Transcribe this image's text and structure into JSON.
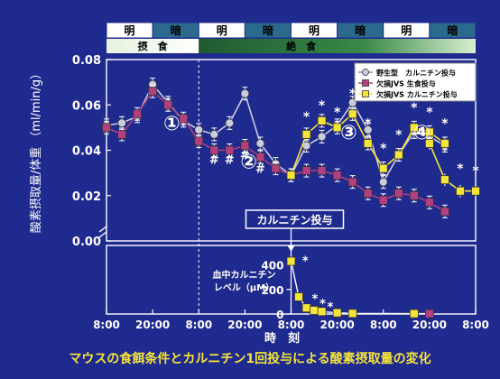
{
  "chart_data": {
    "type": "line",
    "title": "マウスの食餌条件とカルニチン1回投与による酸素摂取量の変化",
    "ylabel": "酸素摂取量/体重 （ml/min/g）",
    "xlabel": "時　刻",
    "x_ticks": [
      "8:00",
      "20:00",
      "8:00",
      "20:00",
      "8:00",
      "20:00",
      "8:00",
      "20:00",
      "8:00"
    ],
    "y_ticks": [
      "0.08",
      "0.06",
      "0.04",
      "0.02",
      "0.00"
    ],
    "ylim": [
      0.0,
      0.08
    ],
    "light_dark_bar": [
      "明",
      "暗",
      "明",
      "暗",
      "明",
      "暗",
      "明",
      "暗"
    ],
    "phases": {
      "fed": "摂　食",
      "fasting": "絶　食"
    },
    "phase_numbers": [
      "①",
      "②",
      "③",
      "④"
    ],
    "annotation": "カルニチン投与",
    "hash_mark": "#",
    "star_mark": "*",
    "legend_position": "top-right",
    "series": [
      {
        "name": "野生型　カルニチン投与",
        "color": "#c9cbe0",
        "marker": "circle",
        "x": [
          0,
          4,
          8,
          12,
          16,
          20,
          24,
          28,
          32,
          36,
          40,
          44,
          48,
          52,
          56,
          60,
          64,
          68,
          72,
          76,
          80,
          84,
          88
        ],
        "y": [
          0.051,
          0.052,
          0.055,
          0.069,
          0.061,
          0.053,
          0.049,
          0.047,
          0.052,
          0.065,
          0.043,
          0.034,
          0.029,
          0.042,
          0.046,
          0.051,
          0.061,
          0.049,
          0.026,
          0.038,
          0.048,
          0.046,
          0.042
        ]
      },
      {
        "name": "欠損JVS 生食投与",
        "color": "#b24080",
        "marker": "square",
        "x": [
          0,
          4,
          8,
          12,
          16,
          20,
          24,
          28,
          32,
          36,
          40,
          44,
          48,
          52,
          56,
          60,
          64,
          68,
          72,
          76,
          80,
          84,
          88
        ],
        "y": [
          0.05,
          0.047,
          0.056,
          0.066,
          0.06,
          0.054,
          0.044,
          0.04,
          0.04,
          0.042,
          0.037,
          0.032,
          0.029,
          0.031,
          0.031,
          0.029,
          0.026,
          0.021,
          0.018,
          0.021,
          0.02,
          0.017,
          0.013
        ]
      },
      {
        "name": "欠損JVS カルニチン投与",
        "color": "#f5e43a",
        "marker": "square",
        "x": [
          48,
          52,
          56,
          60,
          64,
          68,
          72,
          76,
          80,
          84,
          88
        ],
        "y": [
          0.029,
          0.047,
          0.053,
          0.05,
          0.056,
          0.043,
          0.032,
          0.038,
          0.05,
          0.048,
          0.043
        ]
      }
    ],
    "series_tail": [
      {
        "x": [
          84,
          88,
          92,
          96
        ],
        "y": [
          0.043,
          0.027,
          0.022,
          0.022
        ]
      }
    ],
    "inset": {
      "ylabel": "血中カルニチン\nレベル（μM）",
      "y_ticks": [
        "400",
        "200",
        "0"
      ],
      "ylim": [
        0,
        500
      ],
      "x_hours": [
        48,
        50,
        52,
        54,
        56,
        60,
        64,
        80,
        84
      ],
      "y": [
        430,
        140,
        50,
        30,
        20,
        10,
        5,
        3,
        3
      ]
    }
  }
}
